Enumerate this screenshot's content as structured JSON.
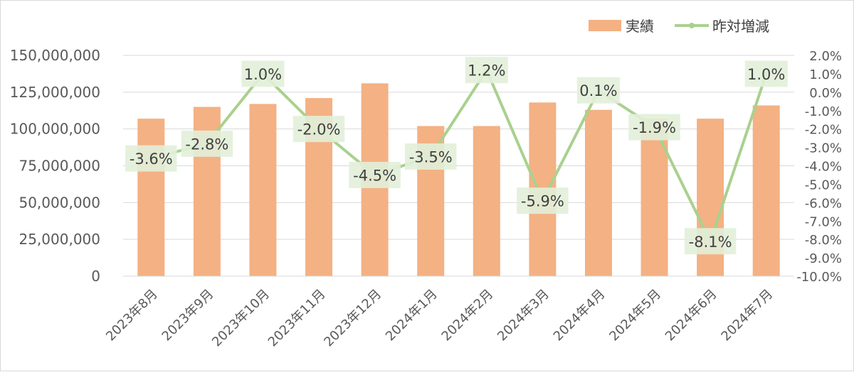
{
  "chart_data": {
    "type": "bar",
    "categories": [
      "2023年8月",
      "2023年9月",
      "2023年10月",
      "2023年11月",
      "2023年12月",
      "2024年1月",
      "2024年2月",
      "2024年3月",
      "2024年4月",
      "2024年5月",
      "2024年6月",
      "2024年7月"
    ],
    "series": [
      {
        "name": "実績",
        "type": "bar",
        "axis": "left",
        "color": "#f4b183",
        "values": [
          107000000,
          115000000,
          117000000,
          121000000,
          131000000,
          102000000,
          102000000,
          118000000,
          113000000,
          107000000,
          107000000,
          116000000
        ]
      },
      {
        "name": "昨対増減",
        "type": "line",
        "axis": "right",
        "color": "#a9d18e",
        "values": [
          -3.6,
          -2.8,
          1.0,
          -2.0,
          -4.5,
          -3.5,
          1.2,
          -5.9,
          0.1,
          -1.9,
          -8.1,
          1.0
        ],
        "labels": [
          "-3.6%",
          "-2.8%",
          "1.0%",
          "-2.0%",
          "-4.5%",
          "-3.5%",
          "1.2%",
          "-5.9%",
          "0.1%",
          "-1.9%",
          "-8.1%",
          "1.0%"
        ],
        "label_background": "#e2efd9"
      }
    ],
    "y_left": {
      "ylim": [
        0,
        150000000
      ],
      "ticks": [
        0,
        25000000,
        50000000,
        75000000,
        100000000,
        125000000,
        150000000
      ],
      "tick_labels": [
        "0",
        "25,000,000",
        "50,000,000",
        "75,000,000",
        "100,000,000",
        "125,000,000",
        "150,000,000"
      ]
    },
    "y_right": {
      "ylim": [
        -10.0,
        2.0
      ],
      "ticks": [
        2.0,
        1.0,
        0.0,
        -1.0,
        -2.0,
        -3.0,
        -4.0,
        -5.0,
        -6.0,
        -7.0,
        -8.0,
        -9.0,
        -10.0
      ],
      "tick_labels": [
        "2.0%",
        "1.0%",
        "0.0%",
        "-1.0%",
        "-2.0%",
        "-3.0%",
        "-4.0%",
        "-5.0%",
        "-6.0%",
        "-7.0%",
        "-8.0%",
        "-9.0%",
        "-10.0%"
      ]
    },
    "grid": true,
    "legend_position": "top-right"
  }
}
